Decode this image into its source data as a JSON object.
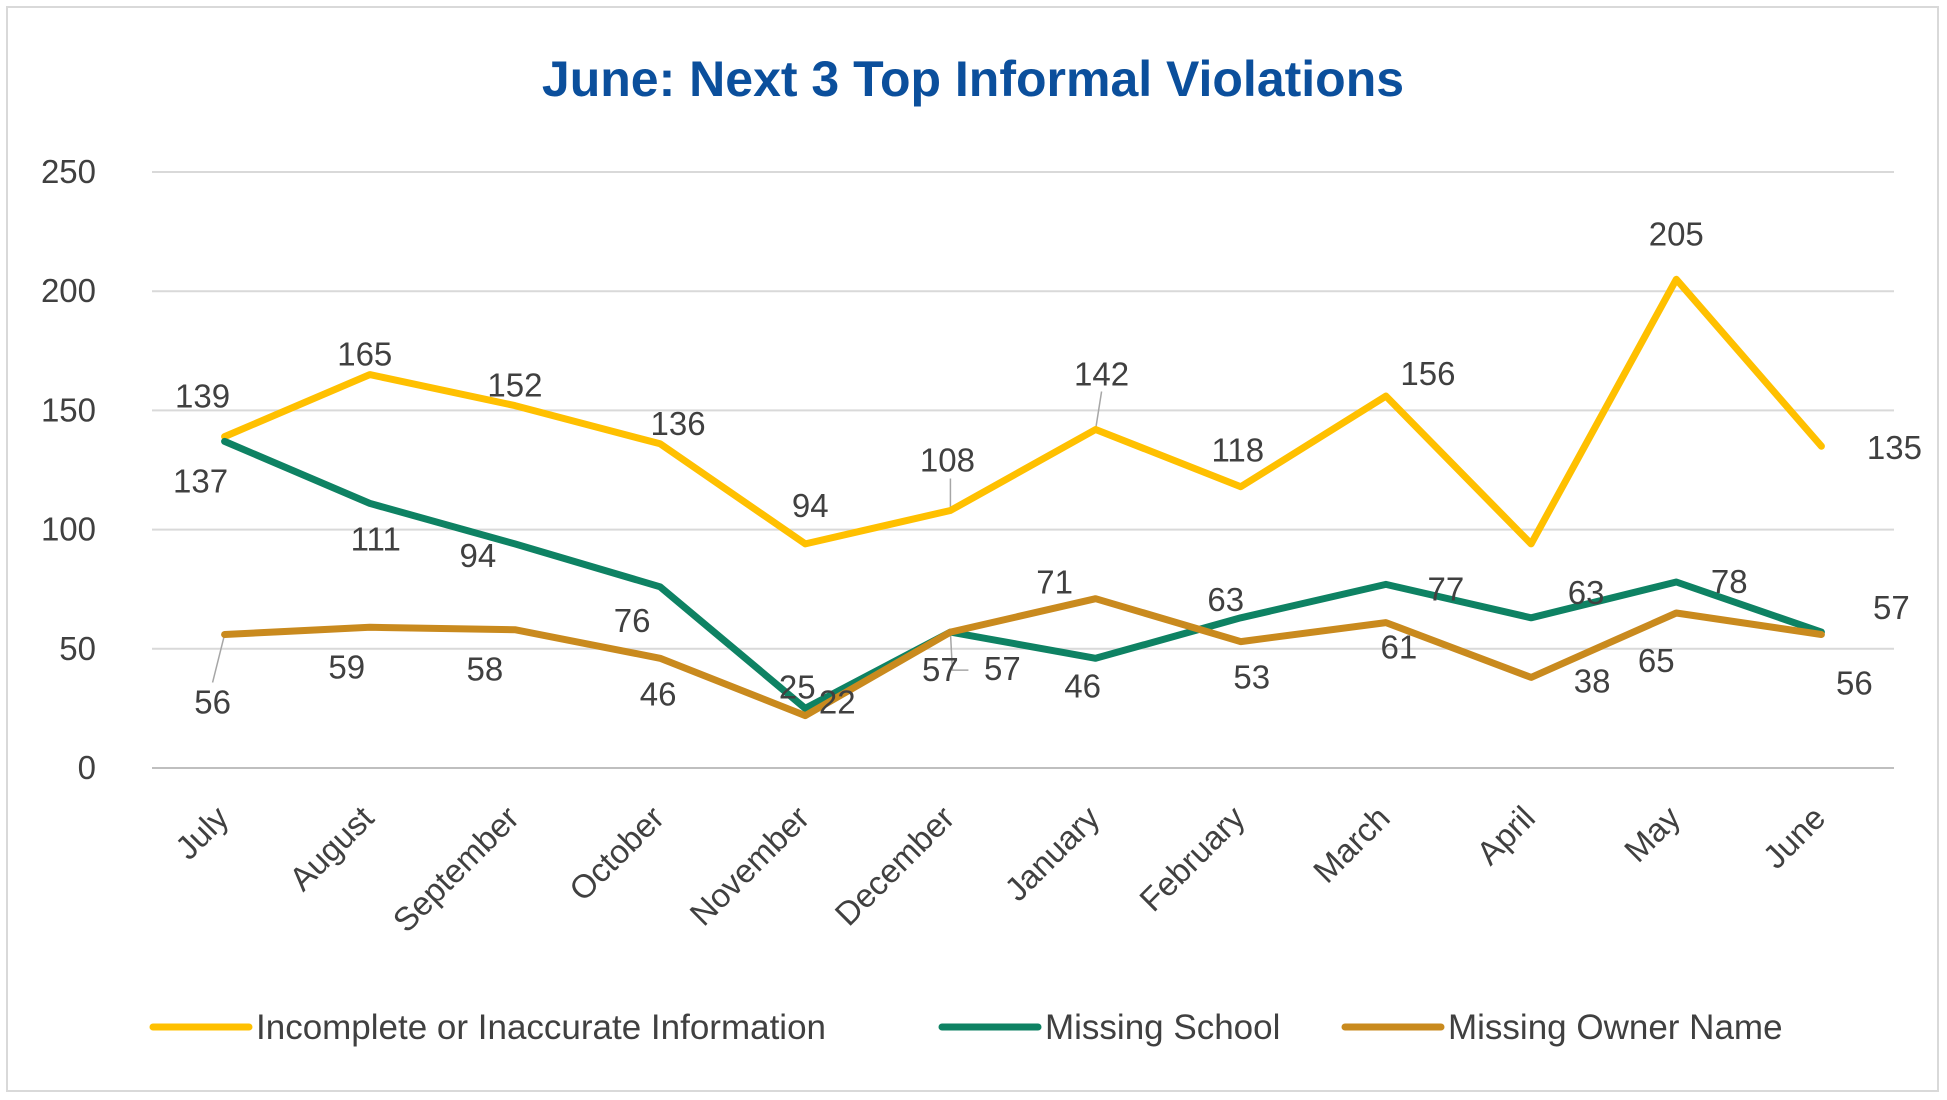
{
  "chart_data": {
    "type": "line",
    "title": "June: Next 3 Top Informal Violations",
    "categories": [
      "July",
      "August",
      "September",
      "October",
      "November",
      "December",
      "January",
      "February",
      "March",
      "April",
      "May",
      "June"
    ],
    "ylim": [
      0,
      250
    ],
    "yticks": [
      0,
      50,
      100,
      150,
      200,
      250
    ],
    "grid": true,
    "legend_position": "bottom",
    "series": [
      {
        "name": "Incomplete or Inaccurate Information",
        "color": "#FFC000",
        "values": [
          139,
          165,
          152,
          136,
          94,
          108,
          142,
          118,
          156,
          94,
          205,
          135
        ]
      },
      {
        "name": "Missing School",
        "color": "#0E8263",
        "values": [
          137,
          111,
          94,
          76,
          25,
          57,
          46,
          63,
          77,
          63,
          78,
          57
        ]
      },
      {
        "name": "Missing Owner Name",
        "color": "#C98A1E",
        "values": [
          56,
          59,
          58,
          46,
          22,
          57,
          71,
          53,
          61,
          38,
          65,
          56
        ]
      }
    ]
  }
}
